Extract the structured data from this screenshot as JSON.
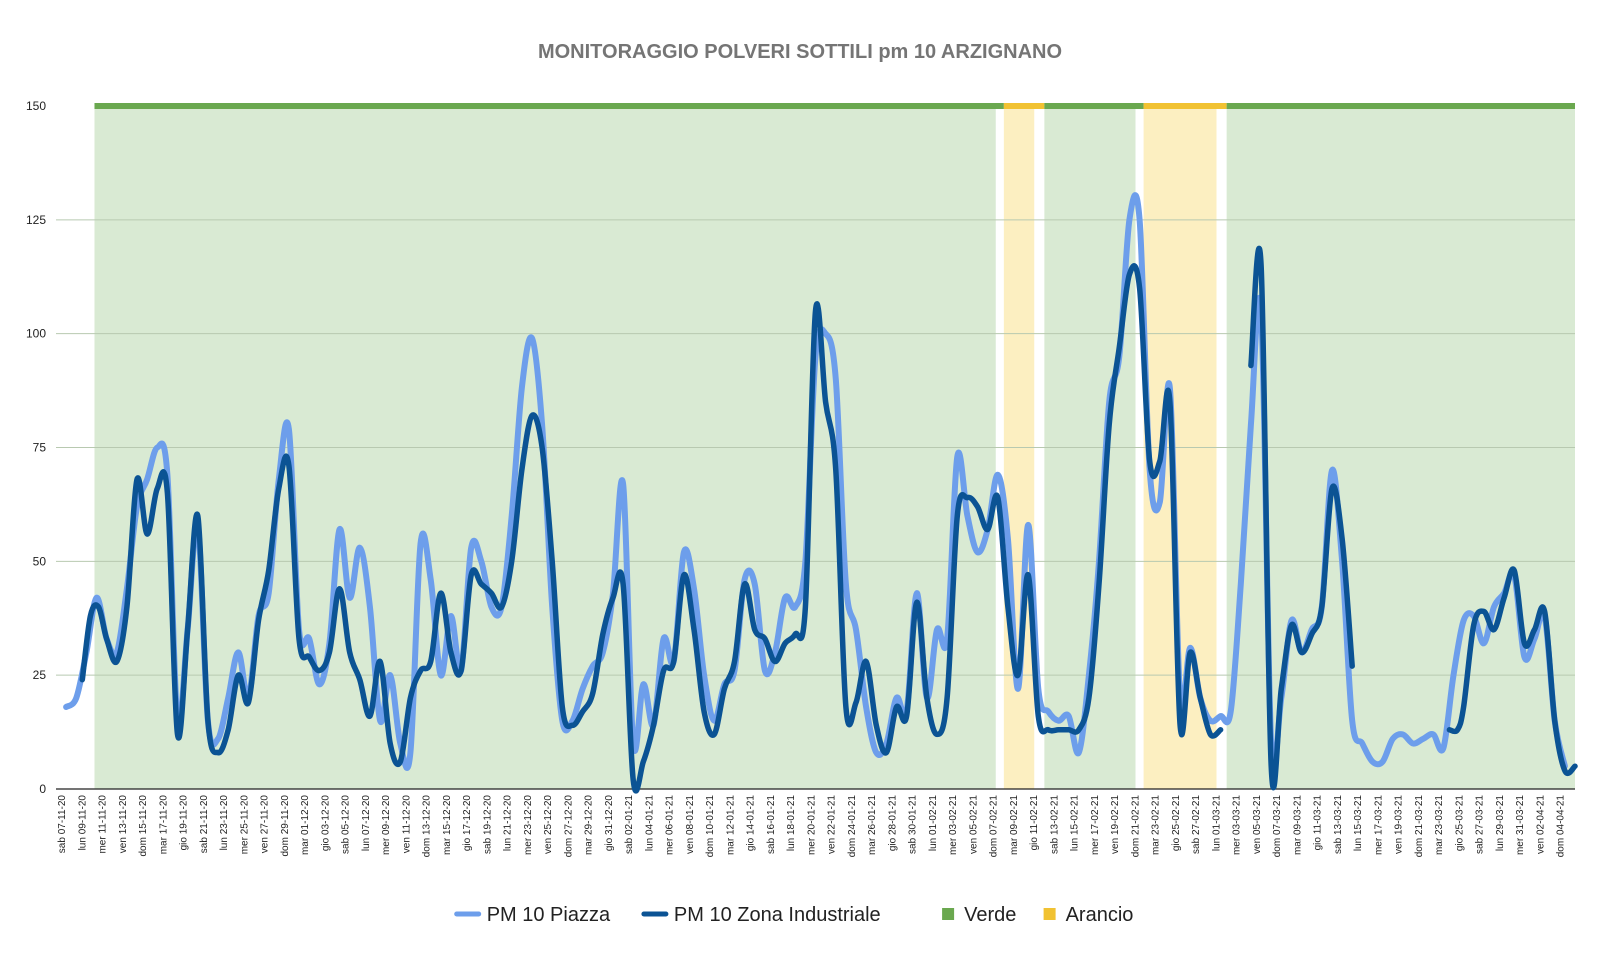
{
  "chart_data": {
    "type": "line",
    "title": "MONITORAGGIO POLVERI SOTTILI pm 10 ARZIGNANO",
    "xlabel": "",
    "ylabel": "",
    "ylim": [
      0,
      150
    ],
    "yticks": [
      0,
      25,
      50,
      75,
      100,
      125,
      150
    ],
    "grid": true,
    "legend_position": "bottom",
    "tick_labels": [
      "sab 07-11-20",
      "lun 09-11-20",
      "mer 11-11-20",
      "ven 13-11-20",
      "dom 15-11-20",
      "mar 17-11-20",
      "gio 19-11-20",
      "sab 21-11-20",
      "lun 23-11-20",
      "mer 25-11-20",
      "ven 27-11-20",
      "dom 29-11-20",
      "mar 01-12-20",
      "gio 03-12-20",
      "sab 05-12-20",
      "lun 07-12-20",
      "mer 09-12-20",
      "ven 11-12-20",
      "dom 13-12-20",
      "mar 15-12-20",
      "gio 17-12-20",
      "sab 19-12-20",
      "lun 21-12-20",
      "mer 23-12-20",
      "ven 25-12-20",
      "dom 27-12-20",
      "mar 29-12-20",
      "gio 31-12-20",
      "sab 02-01-21",
      "lun 04-01-21",
      "mer 06-01-21",
      "ven 08-01-21",
      "dom 10-01-21",
      "mar 12-01-21",
      "gio 14-01-21",
      "sab 16-01-21",
      "lun 18-01-21",
      "mer 20-01-21",
      "ven 22-01-21",
      "dom 24-01-21",
      "mar 26-01-21",
      "gio 28-01-21",
      "sab 30-01-21",
      "lun 01-02-21",
      "mer 03-02-21",
      "ven 05-02-21",
      "dom 07-02-21",
      "mar 09-02-21",
      "gio 11-02-21",
      "sab 13-02-21",
      "lun 15-02-21",
      "mer 17-02-21",
      "ven 19-02-21",
      "dom 21-02-21",
      "mar 23-02-21",
      "gio 25-02-21",
      "sab 27-02-21",
      "lun 01-03-21",
      "mer 03-03-21",
      "ven 05-03-21",
      "dom 07-03-21",
      "mar 09-03-21",
      "gio 11-03-21",
      "sab 13-03-21",
      "lun 15-03-21",
      "mer 17-03-21",
      "ven 19-03-21",
      "dom 21-03-21",
      "mar 23-03-21",
      "gio 25-03-21",
      "sab 27-03-21",
      "lun 29-03-21",
      "mer 31-03-21",
      "ven 02-04-21",
      "dom 04-04-21"
    ],
    "series": [
      {
        "name": "PM 10 Piazza",
        "color": "#6d9eeb",
        "points": [
          [
            0,
            18
          ],
          [
            0.5,
            20
          ],
          [
            1,
            30
          ],
          [
            1.5,
            42
          ],
          [
            2,
            33
          ],
          [
            2.5,
            30
          ],
          [
            3,
            44
          ],
          [
            3.5,
            62
          ],
          [
            4,
            68
          ],
          [
            4.5,
            75
          ],
          [
            5,
            69
          ],
          [
            5.5,
            15
          ],
          [
            6,
            35
          ],
          [
            6.5,
            58
          ],
          [
            7,
            15
          ],
          [
            7.5,
            11
          ],
          [
            8,
            20
          ],
          [
            8.5,
            30
          ],
          [
            9,
            20
          ],
          [
            9.5,
            38
          ],
          [
            10,
            43
          ],
          [
            10.5,
            68
          ],
          [
            11,
            79
          ],
          [
            11.5,
            35
          ],
          [
            12,
            33
          ],
          [
            12.5,
            23
          ],
          [
            13,
            32
          ],
          [
            13.5,
            57
          ],
          [
            14,
            42
          ],
          [
            14.5,
            53
          ],
          [
            15,
            40
          ],
          [
            15.5,
            15
          ],
          [
            16,
            25
          ],
          [
            16.5,
            10
          ],
          [
            17,
            8
          ],
          [
            17.5,
            54
          ],
          [
            18,
            46
          ],
          [
            18.5,
            25
          ],
          [
            19,
            38
          ],
          [
            19.5,
            26
          ],
          [
            20,
            53
          ],
          [
            20.5,
            50
          ],
          [
            21,
            40
          ],
          [
            21.5,
            40
          ],
          [
            22,
            60
          ],
          [
            22.5,
            88
          ],
          [
            23,
            99
          ],
          [
            23.5,
            80
          ],
          [
            24,
            40
          ],
          [
            24.5,
            15
          ],
          [
            25,
            15
          ],
          [
            25.5,
            22
          ],
          [
            26,
            27
          ],
          [
            26.5,
            30
          ],
          [
            27,
            43
          ],
          [
            27.5,
            67
          ],
          [
            28,
            10
          ],
          [
            28.5,
            23
          ],
          [
            29,
            14
          ],
          [
            29.5,
            33
          ],
          [
            30,
            28
          ],
          [
            30.5,
            52
          ],
          [
            31,
            44
          ],
          [
            31.5,
            25
          ],
          [
            32,
            15
          ],
          [
            32.5,
            23
          ],
          [
            33,
            26
          ],
          [
            33.5,
            46
          ],
          [
            34,
            45
          ],
          [
            34.5,
            26
          ],
          [
            35,
            30
          ],
          [
            35.5,
            42
          ],
          [
            36,
            40
          ],
          [
            36.5,
            50
          ],
          [
            37,
            95
          ],
          [
            37.5,
            100
          ],
          [
            38,
            90
          ],
          [
            38.5,
            45
          ],
          [
            39,
            35
          ],
          [
            39.5,
            18
          ],
          [
            40,
            8
          ],
          [
            40.5,
            10
          ],
          [
            41,
            20
          ],
          [
            41.5,
            17
          ],
          [
            42,
            43
          ],
          [
            42.5,
            20
          ],
          [
            43,
            35
          ],
          [
            43.5,
            33
          ],
          [
            44,
            73
          ],
          [
            44.5,
            60
          ],
          [
            45,
            52
          ],
          [
            45.5,
            57
          ],
          [
            46,
            69
          ],
          [
            46.5,
            55
          ],
          [
            47,
            22
          ],
          [
            47.5,
            58
          ],
          [
            48,
            22
          ],
          [
            48.5,
            17
          ],
          [
            49,
            15
          ],
          [
            49.5,
            16
          ],
          [
            50,
            8
          ],
          [
            50.5,
            25
          ],
          [
            51,
            50
          ],
          [
            51.5,
            85
          ],
          [
            52,
            95
          ],
          [
            52.5,
            125
          ],
          [
            53,
            125
          ],
          [
            53.5,
            70
          ],
          [
            54,
            63
          ],
          [
            54.5,
            88
          ],
          [
            55,
            20
          ],
          [
            55.5,
            31
          ],
          [
            56,
            20
          ],
          [
            56.5,
            15
          ],
          [
            57,
            16
          ],
          [
            57.5,
            17
          ],
          [
            58,
            45
          ],
          [
            58.5,
            80
          ],
          [
            59,
            105
          ],
          [
            59.5,
            10
          ],
          [
            60,
            20
          ],
          [
            60.5,
            37
          ],
          [
            61,
            30
          ],
          [
            61.5,
            35
          ],
          [
            62,
            40
          ],
          [
            62.5,
            70
          ],
          [
            63,
            50
          ],
          [
            63.5,
            15
          ],
          [
            64,
            10
          ],
          [
            64.5,
            6
          ],
          [
            65,
            6
          ],
          [
            65.5,
            11
          ],
          [
            66,
            12
          ],
          [
            66.5,
            10
          ],
          [
            67,
            11
          ],
          [
            67.5,
            12
          ],
          [
            68,
            9
          ],
          [
            68.5,
            25
          ],
          [
            69,
            37
          ],
          [
            69.5,
            38
          ],
          [
            70,
            32
          ],
          [
            70.5,
            40
          ],
          [
            71,
            43
          ],
          [
            71.5,
            47
          ],
          [
            72,
            29
          ],
          [
            72.5,
            33
          ],
          [
            73,
            38
          ],
          [
            73.5,
            15
          ],
          [
            74,
            5
          ]
        ]
      },
      {
        "name": "PM 10 Zona Industriale",
        "color": "#0b5394",
        "points": [
          [
            0.8,
            24
          ],
          [
            1.2,
            38
          ],
          [
            1.6,
            40
          ],
          [
            2,
            33
          ],
          [
            2.5,
            28
          ],
          [
            3,
            40
          ],
          [
            3.5,
            68
          ],
          [
            4,
            56
          ],
          [
            4.5,
            66
          ],
          [
            5,
            65
          ],
          [
            5.5,
            12
          ],
          [
            6,
            35
          ],
          [
            6.5,
            60
          ],
          [
            7,
            15
          ],
          [
            7.5,
            8
          ],
          [
            8,
            13
          ],
          [
            8.5,
            25
          ],
          [
            9,
            19
          ],
          [
            9.5,
            37
          ],
          [
            10,
            48
          ],
          [
            10.5,
            66
          ],
          [
            11,
            71
          ],
          [
            11.5,
            33
          ],
          [
            12,
            29
          ],
          [
            12.5,
            26
          ],
          [
            13,
            30
          ],
          [
            13.5,
            44
          ],
          [
            14,
            30
          ],
          [
            14.5,
            24
          ],
          [
            15,
            16
          ],
          [
            15.5,
            28
          ],
          [
            16,
            10
          ],
          [
            16.5,
            6
          ],
          [
            17,
            20
          ],
          [
            17.5,
            26
          ],
          [
            18,
            28
          ],
          [
            18.5,
            43
          ],
          [
            19,
            30
          ],
          [
            19.5,
            26
          ],
          [
            20,
            47
          ],
          [
            20.5,
            45
          ],
          [
            21,
            43
          ],
          [
            21.5,
            40
          ],
          [
            22,
            50
          ],
          [
            22.5,
            70
          ],
          [
            23,
            82
          ],
          [
            23.5,
            75
          ],
          [
            24,
            50
          ],
          [
            24.5,
            18
          ],
          [
            25,
            14
          ],
          [
            25.5,
            17
          ],
          [
            26,
            21
          ],
          [
            26.5,
            34
          ],
          [
            27,
            42
          ],
          [
            27.5,
            45
          ],
          [
            28,
            2
          ],
          [
            28.5,
            6
          ],
          [
            29,
            14
          ],
          [
            29.5,
            26
          ],
          [
            30,
            28
          ],
          [
            30.5,
            47
          ],
          [
            31,
            35
          ],
          [
            31.5,
            17
          ],
          [
            32,
            12
          ],
          [
            32.5,
            22
          ],
          [
            33,
            28
          ],
          [
            33.5,
            45
          ],
          [
            34,
            35
          ],
          [
            34.5,
            33
          ],
          [
            35,
            28
          ],
          [
            35.5,
            32
          ],
          [
            36,
            34
          ],
          [
            36.5,
            40
          ],
          [
            37,
            105
          ],
          [
            37.5,
            85
          ],
          [
            38,
            70
          ],
          [
            38.5,
            18
          ],
          [
            39,
            19
          ],
          [
            39.5,
            28
          ],
          [
            40,
            14
          ],
          [
            40.5,
            8
          ],
          [
            41,
            18
          ],
          [
            41.5,
            16
          ],
          [
            42,
            41
          ],
          [
            42.5,
            20
          ],
          [
            43,
            12
          ],
          [
            43.5,
            20
          ],
          [
            44,
            60
          ],
          [
            44.5,
            64
          ],
          [
            45,
            62
          ],
          [
            45.5,
            57
          ],
          [
            46,
            64
          ],
          [
            46.5,
            40
          ],
          [
            47,
            25
          ],
          [
            47.5,
            47
          ],
          [
            48,
            16
          ],
          [
            48.5,
            13
          ],
          [
            49,
            13
          ],
          [
            49.5,
            13
          ],
          [
            50,
            13
          ],
          [
            50.5,
            20
          ],
          [
            51,
            45
          ],
          [
            51.5,
            80
          ],
          [
            52,
            97
          ],
          [
            52.5,
            113
          ],
          [
            53,
            110
          ],
          [
            53.5,
            72
          ],
          [
            54,
            72
          ],
          [
            54.5,
            85
          ],
          [
            55,
            14
          ],
          [
            55.5,
            30
          ],
          [
            56,
            20
          ],
          [
            56.5,
            12
          ],
          [
            57,
            13
          ],
          [
            58.5,
            93
          ],
          [
            59,
            115
          ],
          [
            59.5,
            5
          ],
          [
            60,
            22
          ],
          [
            60.5,
            36
          ],
          [
            61,
            30
          ],
          [
            61.5,
            34
          ],
          [
            62,
            40
          ],
          [
            62.5,
            66
          ],
          [
            63,
            55
          ],
          [
            63.5,
            27
          ],
          [
            68.3,
            13
          ],
          [
            68.7,
            13
          ],
          [
            69,
            18
          ],
          [
            69.5,
            36
          ],
          [
            70,
            39
          ],
          [
            70.5,
            35
          ],
          [
            71,
            42
          ],
          [
            71.5,
            48
          ],
          [
            72,
            32
          ],
          [
            72.5,
            35
          ],
          [
            73,
            39
          ],
          [
            73.5,
            15
          ],
          [
            74,
            4
          ],
          [
            74.5,
            5
          ]
        ]
      }
    ],
    "bands": [
      {
        "from": 1.9,
        "to": 46.4,
        "status": "Verde"
      },
      {
        "from": 46.8,
        "to": 48.3,
        "status": "Arancio"
      },
      {
        "from": 48.8,
        "to": 53.3,
        "status": "Verde"
      },
      {
        "from": 53.7,
        "to": 57.3,
        "status": "Arancio"
      },
      {
        "from": 57.8,
        "to": 75,
        "status": "Verde"
      }
    ],
    "legend": [
      {
        "label": "PM 10 Piazza",
        "color": "#6d9eeb",
        "kind": "line"
      },
      {
        "label": "PM 10 Zona Industriale",
        "color": "#0b5394",
        "kind": "line"
      },
      {
        "label": "Verde",
        "color": "#6aa84f",
        "kind": "square"
      },
      {
        "label": "Arancio",
        "color": "#f1c232",
        "kind": "square"
      }
    ],
    "band_fill_colors": {
      "Verde": "#d9ead3",
      "Arancio": "#fcefc1"
    },
    "band_line_colors": {
      "Verde": "#6aa84f",
      "Arancio": "#f1c232"
    }
  }
}
